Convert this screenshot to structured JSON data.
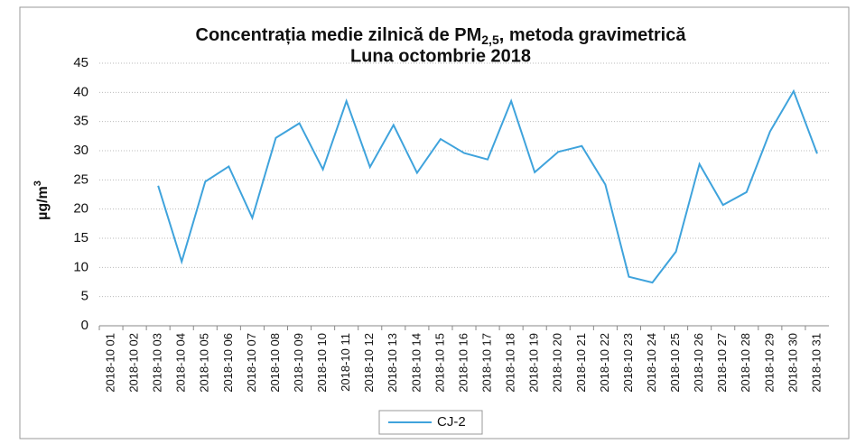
{
  "chart_data": {
    "type": "line",
    "title": {
      "text": "Concentrația medie zilnică de PM",
      "subscript": "2,5",
      "suffix": ", metoda gravimetrică"
    },
    "subtitle": "Luna octombrie 2018",
    "ylabel": {
      "text": "µg/m",
      "superscript": "3"
    },
    "categories": [
      "2018-10 01",
      "2018-10 02",
      "2018-10 03",
      "2018-10 04",
      "2018-10 05",
      "2018-10 06",
      "2018-10 07",
      "2018-10 08",
      "2018-10 09",
      "2018-10 10",
      "2018-10 11",
      "2018-10 12",
      "2018-10 13",
      "2018-10 14",
      "2018-10 15",
      "2018-10 16",
      "2018-10 17",
      "2018-10 18",
      "2018-10 19",
      "2018-10 20",
      "2018-10 21",
      "2018-10 22",
      "2018-10 23",
      "2018-10 24",
      "2018-10 25",
      "2018-10 26",
      "2018-10 27",
      "2018-10 28",
      "2018-10 29",
      "2018-10 30",
      "2018-10 31"
    ],
    "series": [
      {
        "name": "CJ-2",
        "color": "#3fa3dc",
        "values": [
          null,
          null,
          24,
          11,
          24.7,
          27.3,
          18.5,
          32.2,
          34.7,
          26.8,
          38.5,
          27.2,
          34.4,
          26.2,
          32,
          29.6,
          28.5,
          38.5,
          26.3,
          29.8,
          30.8,
          24.2,
          8.4,
          7.4,
          12.7,
          27.7,
          20.7,
          22.9,
          33.3,
          40.2,
          29.5
        ]
      }
    ],
    "ylim": [
      0,
      45
    ],
    "yticks": [
      0,
      5,
      10,
      15,
      20,
      25,
      30,
      35,
      40,
      45
    ],
    "grid": true,
    "legend": "bottom"
  }
}
